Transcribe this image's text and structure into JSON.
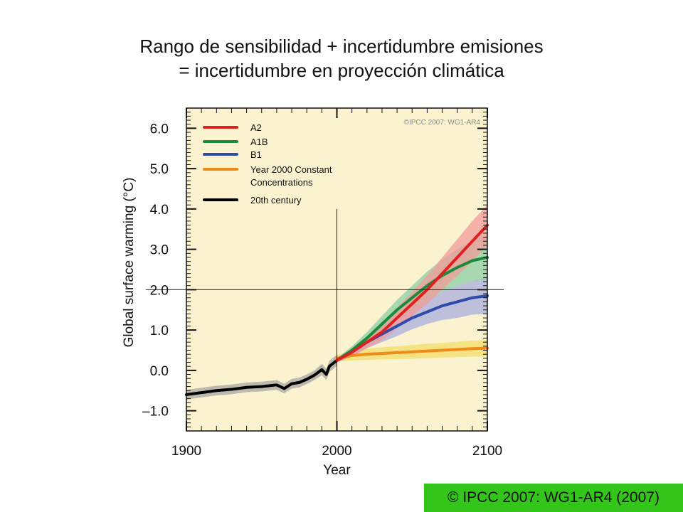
{
  "title_lines": [
    "Rango de sensibilidad + incertidumbre emisiones",
    "= incertidumbre en proyección climática"
  ],
  "credit": "© IPCC 2007: WG1-AR4 (2007)",
  "chart_data": {
    "type": "line",
    "watermark": "©IPCC 2007: WG1-AR4",
    "xlabel": "Year",
    "ylabel": "Global surface warming (°C)",
    "xlim": [
      1900,
      2100
    ],
    "ylim": [
      -1.5,
      6.5
    ],
    "xticks": [
      1900,
      2000,
      2100
    ],
    "xtick_labels": [
      "1900",
      "2000",
      "2100"
    ],
    "yticks": [
      -1.0,
      0.0,
      1.0,
      2.0,
      3.0,
      4.0,
      5.0,
      6.0
    ],
    "ytick_labels": [
      "–1.0",
      "0.0",
      "1.0",
      "2.0",
      "3.0",
      "4.0",
      "5.0",
      "6.0"
    ],
    "reference_lines": {
      "x": 2000,
      "y": 2.0
    },
    "legend": {
      "position": "top-left",
      "entries": [
        {
          "label": "A2",
          "color": "#e02020"
        },
        {
          "label": "A1B",
          "color": "#1a8a3c"
        },
        {
          "label": "B1",
          "color": "#2f4aa8"
        },
        {
          "label": "Year 2000 Constant",
          "label2": "Concentrations",
          "color": "#f08a1a"
        },
        {
          "label": "20th century",
          "color": "#000000"
        }
      ]
    },
    "colors": {
      "background": "#fbf3cf",
      "A2": "#e02020",
      "A2_band": "#f29b9b",
      "A1B": "#1a8a3c",
      "A1B_band": "#8ccfa5",
      "B1": "#2f4aa8",
      "B1_band": "#a9addf",
      "const": "#f08a1a",
      "const_band": "#f1dc6a",
      "c20": "#000000",
      "c20_band": "#a6a6a6"
    },
    "series": [
      {
        "name": "20th century",
        "x": [
          1900,
          1910,
          1920,
          1930,
          1940,
          1950,
          1960,
          1965,
          1970,
          1975,
          1980,
          1985,
          1990,
          1993,
          1995,
          2000
        ],
        "y": [
          -0.6,
          -0.55,
          -0.5,
          -0.47,
          -0.42,
          -0.4,
          -0.36,
          -0.45,
          -0.33,
          -0.3,
          -0.22,
          -0.12,
          0.02,
          -0.1,
          0.1,
          0.25
        ],
        "band": [
          0.12,
          0.12,
          0.12,
          0.12,
          0.12,
          0.12,
          0.12,
          0.12,
          0.12,
          0.12,
          0.12,
          0.12,
          0.14,
          0.14,
          0.14,
          0.14
        ]
      },
      {
        "name": "A2",
        "x": [
          2000,
          2010,
          2020,
          2030,
          2040,
          2050,
          2060,
          2070,
          2080,
          2090,
          2100
        ],
        "y": [
          0.25,
          0.45,
          0.7,
          0.95,
          1.3,
          1.65,
          2.0,
          2.4,
          2.8,
          3.2,
          3.6
        ],
        "band": [
          0.05,
          0.1,
          0.15,
          0.2,
          0.25,
          0.3,
          0.35,
          0.4,
          0.45,
          0.5,
          0.5
        ]
      },
      {
        "name": "A1B",
        "x": [
          2000,
          2010,
          2020,
          2030,
          2040,
          2050,
          2060,
          2070,
          2080,
          2090,
          2100
        ],
        "y": [
          0.25,
          0.5,
          0.8,
          1.15,
          1.5,
          1.8,
          2.1,
          2.35,
          2.55,
          2.72,
          2.8
        ],
        "band": [
          0.05,
          0.1,
          0.15,
          0.2,
          0.25,
          0.3,
          0.35,
          0.4,
          0.45,
          0.5,
          0.55
        ]
      },
      {
        "name": "B1",
        "x": [
          2000,
          2010,
          2020,
          2030,
          2040,
          2050,
          2060,
          2070,
          2080,
          2090,
          2100
        ],
        "y": [
          0.25,
          0.45,
          0.7,
          0.9,
          1.1,
          1.3,
          1.45,
          1.6,
          1.7,
          1.8,
          1.85
        ],
        "band": [
          0.05,
          0.1,
          0.15,
          0.2,
          0.25,
          0.28,
          0.3,
          0.35,
          0.4,
          0.42,
          0.45
        ]
      },
      {
        "name": "Year 2000 Constant Concentrations",
        "x": [
          2000,
          2010,
          2020,
          2030,
          2040,
          2050,
          2060,
          2070,
          2080,
          2090,
          2100
        ],
        "y": [
          0.3,
          0.37,
          0.4,
          0.42,
          0.44,
          0.46,
          0.48,
          0.5,
          0.52,
          0.54,
          0.55
        ],
        "band": [
          0.08,
          0.12,
          0.14,
          0.15,
          0.16,
          0.17,
          0.18,
          0.18,
          0.19,
          0.2,
          0.2
        ]
      }
    ]
  }
}
